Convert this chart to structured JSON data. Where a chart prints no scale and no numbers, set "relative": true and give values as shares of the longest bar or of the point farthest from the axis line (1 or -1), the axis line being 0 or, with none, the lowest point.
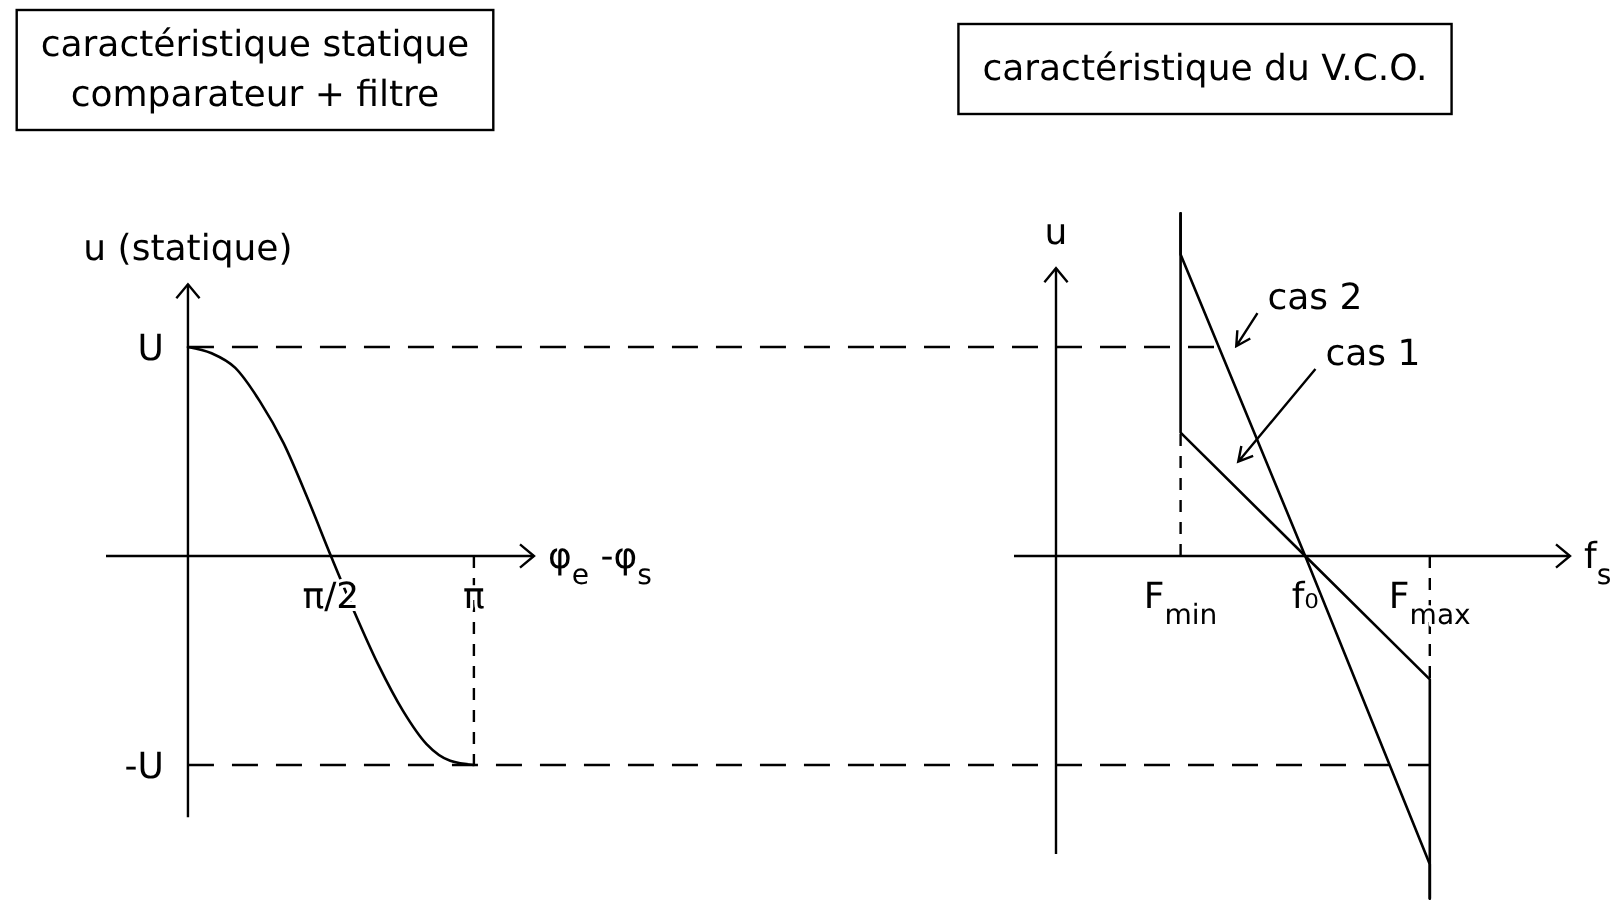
{
  "chart_data": [
    {
      "type": "line",
      "title": "caractéristique statique\ncomparateur + filtre",
      "xlabel": "φ$_{e}$ -φ$_{s}$",
      "ylabel": "u (statique)",
      "relative": true,
      "xlim": [
        -0.9,
        3.8
      ],
      "xticks": [
        {
          "value": 1.57,
          "label": "π/2"
        },
        {
          "value": 3.14,
          "label": "π"
        }
      ],
      "series": [
        {
          "color": "#000000",
          "x": [
            0,
            0.26,
            0.52,
            0.79,
            1.05,
            1.31,
            1.57,
            1.83,
            2.09,
            2.36,
            2.62,
            2.88,
            3.14
          ],
          "values": [
            1,
            0.97,
            0.9,
            0.74,
            0.54,
            0.28,
            0,
            -0.27,
            -0.52,
            -0.74,
            -0.9,
            -0.98,
            -1
          ]
        }
      ],
      "ref_lines": [
        {
          "axis": "y",
          "value": 1,
          "label": "U",
          "line_style": "dashed"
        },
        {
          "axis": "y",
          "value": -1,
          "label": "-U",
          "line_style": "dashed"
        },
        {
          "axis": "x",
          "value": 3.14,
          "line_style": "dashed"
        }
      ]
    },
    {
      "type": "line",
      "title": "caractéristique du V.C.O.",
      "xlabel": "f$_{s}$",
      "ylabel": "u",
      "relative": true,
      "categories": [
        null,
        "F$_{min}$",
        "f₀",
        "F$_{max}$"
      ],
      "series": [
        {
          "name": "cas 2",
          "color": "#000000",
          "x": [
            "F$_{min}$",
            "F$_{min}$",
            "f₀",
            "F$_{max}$",
            "F$_{max}$"
          ],
          "values": [
            1,
            0.88,
            0,
            -0.9,
            -1
          ]
        },
        {
          "name": "cas 1",
          "color": "#000000",
          "x": [
            "F$_{min}$",
            "F$_{min}$",
            "f₀",
            "F$_{max}$",
            "F$_{max}$"
          ],
          "values": [
            1,
            0.36,
            0,
            -0.36,
            -1
          ]
        }
      ],
      "ref_lines": [
        {
          "axis": "y",
          "value": 0.61,
          "line_style": "dashed"
        },
        {
          "axis": "y",
          "value": -0.61,
          "line_style": "dashed"
        },
        {
          "axis": "x",
          "value": "F$_{min}$",
          "line_style": "dashed"
        },
        {
          "axis": "x",
          "value": "F$_{max}$",
          "line_style": "dashed"
        }
      ]
    }
  ]
}
